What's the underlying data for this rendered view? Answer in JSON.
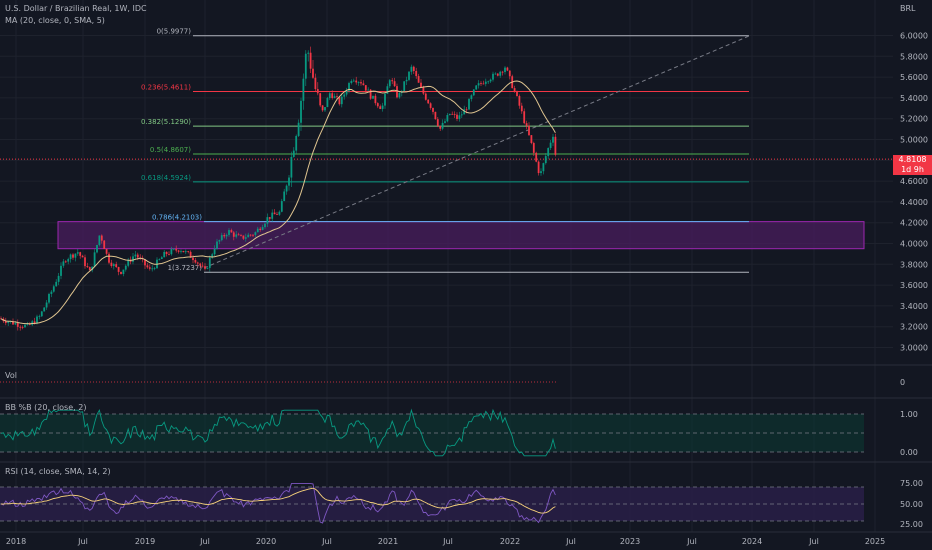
{
  "header": {
    "symbol_line": "U.S. Dollar / Brazilian Real, 1W, IDC",
    "ma_line": "MA (20, close, 0, SMA, 5)",
    "currency": "BRL"
  },
  "price_tag": {
    "price": "4.8108",
    "countdown": "1d 9h"
  },
  "panes": {
    "vol_label": "Vol",
    "bb_label": "BB %B (20, close, 2)",
    "rsi_label": "RSI (14, close, SMA, 14, 2)"
  },
  "fib_levels": [
    {
      "label": "0(5.9977)",
      "value": 5.9977,
      "color": "#b2b5be"
    },
    {
      "label": "0.236(5.4611)",
      "value": 5.4611,
      "color": "#f23645"
    },
    {
      "label": "0.382(5.1290)",
      "value": 5.129,
      "color": "#81c784"
    },
    {
      "label": "0.5(4.8607)",
      "value": 4.8607,
      "color": "#4caf50"
    },
    {
      "label": "0.618(4.5924)",
      "value": 4.5924,
      "color": "#089981"
    },
    {
      "label": "0.786(4.2103)",
      "value": 4.2103,
      "color": "#64b5f6"
    },
    {
      "label": "1(3.7237)",
      "value": 3.7237,
      "color": "#b2b5be"
    }
  ],
  "price_axis": [
    "6.0000",
    "5.8000",
    "5.6000",
    "5.4000",
    "5.2000",
    "5.0000",
    "4.8000",
    "4.6000",
    "4.4000",
    "4.2000",
    "4.0000",
    "3.8000",
    "3.6000",
    "3.4000",
    "3.2000",
    "3.0000"
  ],
  "vol_axis": [
    "0"
  ],
  "bb_axis": [
    "1.00",
    "0.00"
  ],
  "rsi_axis": [
    "75.00",
    "50.00",
    "25.00"
  ],
  "time_axis": [
    "2018",
    "Jul",
    "2019",
    "Jul",
    "2020",
    "Jul",
    "2021",
    "Jul",
    "2022",
    "Jul",
    "2023",
    "Jul",
    "2024",
    "Jul",
    "2025"
  ],
  "colors": {
    "up": "#089981",
    "down": "#f23645",
    "ma": "#e0c590",
    "zone_fill": "#4a1e5e",
    "zone_border": "#9c27b0",
    "rsi_line": "#7e57c2",
    "rsi_ma": "#f7d27a",
    "bb_line": "#089981"
  }
}
